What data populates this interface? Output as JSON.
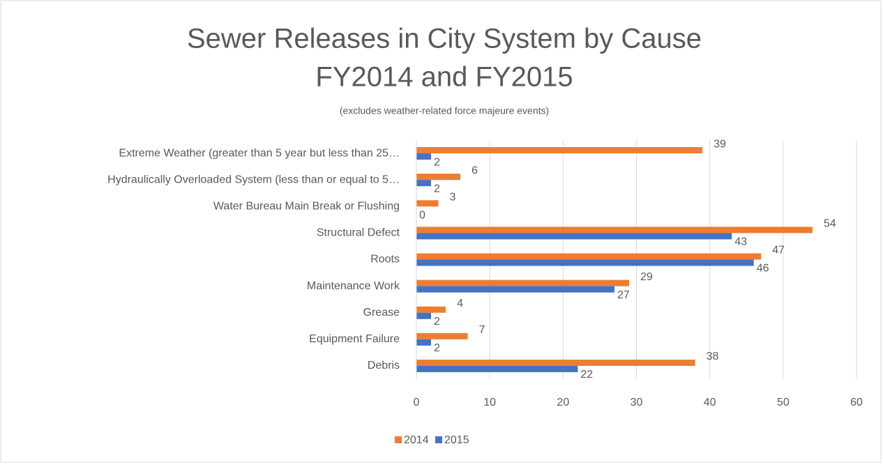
{
  "chart_data": {
    "type": "hbar",
    "title": [
      "Sewer Releases in City System by Cause",
      "FY2014 and FY2015"
    ],
    "subtitle": "(excludes weather-related force majeure events)",
    "categories": [
      "Extreme Weather (greater than 5 year but less than 25…",
      "Hydraulically Overloaded System (less than or equal to 5…",
      "Water Bureau Main Break or Flushing",
      "Structural Defect",
      "Roots",
      "Maintenance Work",
      "Grease",
      "Equipment Failure",
      "Debris"
    ],
    "series": [
      {
        "name": "2014",
        "color": "#ed7d31",
        "values": [
          39,
          6,
          3,
          54,
          47,
          29,
          4,
          7,
          38
        ]
      },
      {
        "name": "2015",
        "color": "#4472c4",
        "values": [
          2,
          2,
          0,
          43,
          46,
          27,
          2,
          2,
          22
        ]
      }
    ],
    "xlim": [
      0,
      60
    ],
    "xticks": [
      0,
      10,
      20,
      30,
      40,
      50,
      60
    ],
    "grid": true,
    "legend": "bottom"
  }
}
